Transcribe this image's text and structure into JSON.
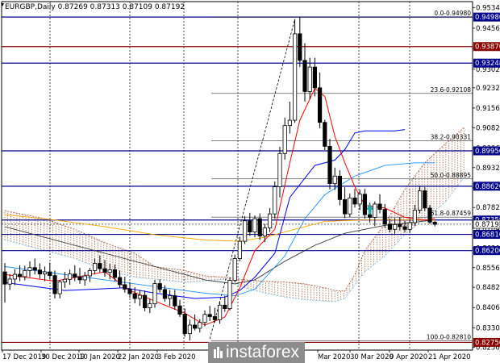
{
  "chart_data": {
    "type": "candlestick",
    "title": "EURGBP,Daily  0.87269 0.87313 0.87109 0.87192",
    "symbol": "EURGBP",
    "timeframe": "Daily",
    "ohlc_header": [
      "0.87269",
      "0.87313",
      "0.87109",
      "0.87192"
    ],
    "y_ticks": [
      "0.95340",
      "0.94560",
      "0.93800",
      "0.93020",
      "0.92320",
      "0.91560",
      "0.90820",
      "0.90060",
      "0.89320",
      "0.88560",
      "0.87820",
      "0.87040",
      "0.86300",
      "0.85560",
      "0.84820",
      "0.84060",
      "0.83300",
      "0.82560"
    ],
    "x_ticks": [
      "17 Dec 2019",
      "30 Dec 2019",
      "10 Jan 2020",
      "22 Jan 2020",
      "3 Feb 2020",
      "Mar 2020",
      "30 Mar 2020",
      "9 Apr 2020",
      "21 Apr 2020"
    ],
    "ylim": [
      0.8246,
      0.9556
    ],
    "horizontal_levels": [
      {
        "price": 0.9498,
        "label": "0.94980",
        "color": "#00008b"
      },
      {
        "price": 0.9387,
        "label": "0.93870",
        "color": "#8b0000"
      },
      {
        "price": 0.93248,
        "label": "0.93248",
        "color": "#00008b"
      },
      {
        "price": 0.8995,
        "label": "0.89950",
        "color": "#00008b"
      },
      {
        "price": 0.8862,
        "label": "0.88620",
        "color": "#00008b"
      },
      {
        "price": 0.8735,
        "label": "0.87350",
        "color": "#00008b"
      },
      {
        "price": 0.8681,
        "label": "0.86810",
        "color": "#00008b"
      },
      {
        "price": 0.862,
        "label": "0.86200",
        "color": "#00008b"
      },
      {
        "price": 0.8275,
        "label": "0.82750",
        "color": "#8b0000"
      }
    ],
    "current_price": {
      "price": 0.87192,
      "label": "0.87192"
    },
    "fibonacci": [
      {
        "price": 0.9498,
        "label": "0.0-0.94980"
      },
      {
        "price": 0.92108,
        "label": "23.6-0.92108"
      },
      {
        "price": 0.90331,
        "label": "38.2-0.90331"
      },
      {
        "price": 0.88895,
        "label": "50.0-0.88895"
      },
      {
        "price": 0.87459,
        "label": "61.8-0.87459"
      },
      {
        "price": 0.8281,
        "label": "100.0-0.82810"
      }
    ],
    "watermark": "instaforex",
    "colors": {
      "bull": "#ffffff",
      "bear": "#000000",
      "level_blue": "#00008b",
      "level_red": "#8b0000",
      "red_line": "#ff0000",
      "blue_line": "#0000ff",
      "light_blue": "#1e90ff",
      "orange": "#ffa500",
      "ma_black": "#333333",
      "kumo_blue": "#87cefa",
      "kumo_brown": "#a0522d"
    },
    "candles": [
      {
        "o": 0.854,
        "h": 0.8573,
        "l": 0.8425,
        "c": 0.8494
      },
      {
        "o": 0.8494,
        "h": 0.8532,
        "l": 0.8472,
        "c": 0.8513
      },
      {
        "o": 0.8513,
        "h": 0.855,
        "l": 0.849,
        "c": 0.8531
      },
      {
        "o": 0.8531,
        "h": 0.8565,
        "l": 0.8505,
        "c": 0.8522
      },
      {
        "o": 0.8522,
        "h": 0.8563,
        "l": 0.8508,
        "c": 0.8545
      },
      {
        "o": 0.8545,
        "h": 0.858,
        "l": 0.852,
        "c": 0.8556
      },
      {
        "o": 0.8556,
        "h": 0.859,
        "l": 0.853,
        "c": 0.8547
      },
      {
        "o": 0.8547,
        "h": 0.8572,
        "l": 0.8515,
        "c": 0.8532
      },
      {
        "o": 0.8532,
        "h": 0.856,
        "l": 0.8505,
        "c": 0.854
      },
      {
        "o": 0.854,
        "h": 0.8575,
        "l": 0.8512,
        "c": 0.8526
      },
      {
        "o": 0.8526,
        "h": 0.8545,
        "l": 0.844,
        "c": 0.8458
      },
      {
        "o": 0.8458,
        "h": 0.851,
        "l": 0.844,
        "c": 0.8502
      },
      {
        "o": 0.8502,
        "h": 0.854,
        "l": 0.848,
        "c": 0.8512
      },
      {
        "o": 0.8512,
        "h": 0.8548,
        "l": 0.8492,
        "c": 0.8532
      },
      {
        "o": 0.8532,
        "h": 0.8565,
        "l": 0.8505,
        "c": 0.852
      },
      {
        "o": 0.852,
        "h": 0.8555,
        "l": 0.8495,
        "c": 0.851
      },
      {
        "o": 0.851,
        "h": 0.854,
        "l": 0.8488,
        "c": 0.8525
      },
      {
        "o": 0.8525,
        "h": 0.8555,
        "l": 0.8502,
        "c": 0.8545
      },
      {
        "o": 0.8545,
        "h": 0.859,
        "l": 0.853,
        "c": 0.8572
      },
      {
        "o": 0.8572,
        "h": 0.8602,
        "l": 0.8538,
        "c": 0.8552
      },
      {
        "o": 0.8552,
        "h": 0.8585,
        "l": 0.8522,
        "c": 0.8538
      },
      {
        "o": 0.8538,
        "h": 0.857,
        "l": 0.8512,
        "c": 0.8548
      },
      {
        "o": 0.8548,
        "h": 0.8568,
        "l": 0.8505,
        "c": 0.8519
      },
      {
        "o": 0.8519,
        "h": 0.8545,
        "l": 0.848,
        "c": 0.8492
      },
      {
        "o": 0.8492,
        "h": 0.8522,
        "l": 0.8462,
        "c": 0.8475
      },
      {
        "o": 0.8475,
        "h": 0.8502,
        "l": 0.8442,
        "c": 0.8458
      },
      {
        "o": 0.8458,
        "h": 0.8482,
        "l": 0.8422,
        "c": 0.844
      },
      {
        "o": 0.844,
        "h": 0.8472,
        "l": 0.8412,
        "c": 0.8452
      },
      {
        "o": 0.8452,
        "h": 0.847,
        "l": 0.8392,
        "c": 0.8405
      },
      {
        "o": 0.8405,
        "h": 0.8438,
        "l": 0.8385,
        "c": 0.842
      },
      {
        "o": 0.842,
        "h": 0.851,
        "l": 0.8405,
        "c": 0.8496
      },
      {
        "o": 0.8496,
        "h": 0.8512,
        "l": 0.8462,
        "c": 0.8474
      },
      {
        "o": 0.8474,
        "h": 0.849,
        "l": 0.8428,
        "c": 0.844
      },
      {
        "o": 0.844,
        "h": 0.8472,
        "l": 0.8412,
        "c": 0.845
      },
      {
        "o": 0.845,
        "h": 0.8472,
        "l": 0.8398,
        "c": 0.8412
      },
      {
        "o": 0.8412,
        "h": 0.8435,
        "l": 0.837,
        "c": 0.8381
      },
      {
        "o": 0.8381,
        "h": 0.8402,
        "l": 0.8296,
        "c": 0.8308
      },
      {
        "o": 0.8308,
        "h": 0.836,
        "l": 0.8282,
        "c": 0.834
      },
      {
        "o": 0.834,
        "h": 0.838,
        "l": 0.832,
        "c": 0.8328
      },
      {
        "o": 0.8328,
        "h": 0.8362,
        "l": 0.8312,
        "c": 0.835
      },
      {
        "o": 0.835,
        "h": 0.8395,
        "l": 0.8335,
        "c": 0.838
      },
      {
        "o": 0.838,
        "h": 0.8412,
        "l": 0.8355,
        "c": 0.8372
      },
      {
        "o": 0.8372,
        "h": 0.8405,
        "l": 0.835,
        "c": 0.836
      },
      {
        "o": 0.836,
        "h": 0.843,
        "l": 0.8345,
        "c": 0.8415
      },
      {
        "o": 0.8415,
        "h": 0.845,
        "l": 0.839,
        "c": 0.8402
      },
      {
        "o": 0.8402,
        "h": 0.852,
        "l": 0.8395,
        "c": 0.8508
      },
      {
        "o": 0.8508,
        "h": 0.8605,
        "l": 0.85,
        "c": 0.859
      },
      {
        "o": 0.859,
        "h": 0.8672,
        "l": 0.858,
        "c": 0.8655
      },
      {
        "o": 0.8655,
        "h": 0.875,
        "l": 0.8645,
        "c": 0.8732
      },
      {
        "o": 0.8732,
        "h": 0.8762,
        "l": 0.8675,
        "c": 0.869
      },
      {
        "o": 0.869,
        "h": 0.8752,
        "l": 0.867,
        "c": 0.874
      },
      {
        "o": 0.874,
        "h": 0.876,
        "l": 0.866,
        "c": 0.8675
      },
      {
        "o": 0.8675,
        "h": 0.872,
        "l": 0.8652,
        "c": 0.8705
      },
      {
        "o": 0.8705,
        "h": 0.878,
        "l": 0.869,
        "c": 0.8758
      },
      {
        "o": 0.8758,
        "h": 0.888,
        "l": 0.874,
        "c": 0.886
      },
      {
        "o": 0.886,
        "h": 0.901,
        "l": 0.882,
        "c": 0.8985
      },
      {
        "o": 0.8985,
        "h": 0.912,
        "l": 0.8962,
        "c": 0.909
      },
      {
        "o": 0.909,
        "h": 0.918,
        "l": 0.906,
        "c": 0.911
      },
      {
        "o": 0.911,
        "h": 0.949,
        "l": 0.91,
        "c": 0.9435
      },
      {
        "o": 0.9435,
        "h": 0.9498,
        "l": 0.931,
        "c": 0.9335
      },
      {
        "o": 0.9335,
        "h": 0.94,
        "l": 0.918,
        "c": 0.9218
      },
      {
        "o": 0.9218,
        "h": 0.9345,
        "l": 0.919,
        "c": 0.931
      },
      {
        "o": 0.931,
        "h": 0.9345,
        "l": 0.92,
        "c": 0.9232
      },
      {
        "o": 0.9232,
        "h": 0.929,
        "l": 0.908,
        "c": 0.9102
      },
      {
        "o": 0.9102,
        "h": 0.9112,
        "l": 0.8998,
        "c": 0.9012
      },
      {
        "o": 0.9012,
        "h": 0.904,
        "l": 0.885,
        "c": 0.8872
      },
      {
        "o": 0.8872,
        "h": 0.8932,
        "l": 0.8848,
        "c": 0.89
      },
      {
        "o": 0.89,
        "h": 0.8922,
        "l": 0.879,
        "c": 0.8812
      },
      {
        "o": 0.8812,
        "h": 0.8858,
        "l": 0.8742,
        "c": 0.8758
      },
      {
        "o": 0.8758,
        "h": 0.8835,
        "l": 0.8745,
        "c": 0.8818
      },
      {
        "o": 0.8818,
        "h": 0.8852,
        "l": 0.8782,
        "c": 0.8795
      },
      {
        "o": 0.8795,
        "h": 0.8848,
        "l": 0.8772,
        "c": 0.8832
      },
      {
        "o": 0.8832,
        "h": 0.8852,
        "l": 0.874,
        "c": 0.8755
      },
      {
        "o": 0.8755,
        "h": 0.88,
        "l": 0.8725,
        "c": 0.8745
      },
      {
        "o": 0.8745,
        "h": 0.8805,
        "l": 0.8712,
        "c": 0.8795
      },
      {
        "o": 0.8795,
        "h": 0.8832,
        "l": 0.876,
        "c": 0.8775
      },
      {
        "o": 0.8775,
        "h": 0.8795,
        "l": 0.8705,
        "c": 0.872
      },
      {
        "o": 0.872,
        "h": 0.874,
        "l": 0.8688,
        "c": 0.87
      },
      {
        "o": 0.87,
        "h": 0.8742,
        "l": 0.868,
        "c": 0.8718
      },
      {
        "o": 0.8718,
        "h": 0.8745,
        "l": 0.8695,
        "c": 0.871
      },
      {
        "o": 0.871,
        "h": 0.8732,
        "l": 0.8688,
        "c": 0.87
      },
      {
        "o": 0.87,
        "h": 0.8738,
        "l": 0.8685,
        "c": 0.8725
      },
      {
        "o": 0.8725,
        "h": 0.8792,
        "l": 0.8712,
        "c": 0.8772
      },
      {
        "o": 0.8772,
        "h": 0.886,
        "l": 0.876,
        "c": 0.8845
      },
      {
        "o": 0.8845,
        "h": 0.8858,
        "l": 0.8768,
        "c": 0.878
      },
      {
        "o": 0.878,
        "h": 0.8792,
        "l": 0.872,
        "c": 0.8727
      },
      {
        "o": 0.8727,
        "h": 0.8731,
        "l": 0.8711,
        "c": 0.8719
      }
    ],
    "red_line": [
      [
        0,
        0.853
      ],
      [
        10,
        0.8505
      ],
      [
        20,
        0.854
      ],
      [
        25,
        0.847
      ],
      [
        30,
        0.843
      ],
      [
        36,
        0.8385
      ],
      [
        40,
        0.834
      ],
      [
        44,
        0.837
      ],
      [
        47,
        0.848
      ],
      [
        50,
        0.862
      ],
      [
        54,
        0.87
      ],
      [
        57,
        0.895
      ],
      [
        59,
        0.911
      ],
      [
        62,
        0.923
      ],
      [
        64,
        0.92
      ],
      [
        66,
        0.905
      ],
      [
        68,
        0.895
      ],
      [
        70,
        0.886
      ],
      [
        72,
        0.879
      ],
      [
        76,
        0.878
      ],
      [
        80,
        0.8745
      ],
      [
        84,
        0.8735
      ],
      [
        86,
        0.874
      ]
    ],
    "blue_line": [
      [
        0,
        0.85
      ],
      [
        12,
        0.847
      ],
      [
        24,
        0.848
      ],
      [
        30,
        0.846
      ],
      [
        38,
        0.844
      ],
      [
        44,
        0.8445
      ],
      [
        47,
        0.847
      ],
      [
        50,
        0.852
      ],
      [
        54,
        0.861
      ],
      [
        57,
        0.882
      ],
      [
        62,
        0.894
      ],
      [
        66,
        0.896
      ],
      [
        68,
        0.9
      ],
      [
        70,
        0.9062
      ],
      [
        72,
        0.907
      ],
      [
        78,
        0.907
      ],
      [
        80,
        0.9075
      ]
    ],
    "light_blue_line": [
      [
        0,
        0.856
      ],
      [
        20,
        0.851
      ],
      [
        40,
        0.846
      ],
      [
        46,
        0.845
      ],
      [
        50,
        0.8475
      ],
      [
        56,
        0.86
      ],
      [
        60,
        0.874
      ],
      [
        64,
        0.883
      ],
      [
        70,
        0.89
      ],
      [
        76,
        0.894
      ],
      [
        82,
        0.895
      ],
      [
        86,
        0.895
      ]
    ],
    "orange_ma": [
      [
        0,
        0.8755
      ],
      [
        10,
        0.8735
      ],
      [
        20,
        0.871
      ],
      [
        30,
        0.868
      ],
      [
        40,
        0.866
      ],
      [
        47,
        0.8655
      ],
      [
        52,
        0.867
      ],
      [
        58,
        0.87
      ],
      [
        64,
        0.873
      ],
      [
        72,
        0.8735
      ],
      [
        80,
        0.8735
      ],
      [
        86,
        0.8735
      ]
    ],
    "black_ma": [
      [
        0,
        0.871
      ],
      [
        10,
        0.866
      ],
      [
        20,
        0.861
      ],
      [
        30,
        0.856
      ],
      [
        40,
        0.851
      ],
      [
        46,
        0.8495
      ],
      [
        50,
        0.851
      ],
      [
        56,
        0.858
      ],
      [
        62,
        0.864
      ],
      [
        68,
        0.8685
      ],
      [
        76,
        0.8715
      ],
      [
        86,
        0.8735
      ]
    ],
    "kumo_span_a": [
      [
        0,
        0.866
      ],
      [
        8,
        0.862
      ],
      [
        14,
        0.859
      ],
      [
        20,
        0.8545
      ],
      [
        26,
        0.852
      ],
      [
        30,
        0.8512
      ],
      [
        36,
        0.85
      ],
      [
        40,
        0.8505
      ],
      [
        44,
        0.8512
      ],
      [
        48,
        0.848
      ],
      [
        52,
        0.846
      ],
      [
        56,
        0.8445
      ],
      [
        60,
        0.8435
      ],
      [
        64,
        0.843
      ],
      [
        66,
        0.8428
      ],
      [
        68,
        0.844
      ],
      [
        70,
        0.849
      ],
      [
        72,
        0.854
      ],
      [
        76,
        0.86
      ],
      [
        80,
        0.868
      ],
      [
        84,
        0.874
      ],
      [
        88,
        0.88
      ],
      [
        92,
        0.89
      ]
    ],
    "kumo_span_b": [
      [
        0,
        0.877
      ],
      [
        8,
        0.874
      ],
      [
        14,
        0.87
      ],
      [
        20,
        0.865
      ],
      [
        26,
        0.861
      ],
      [
        30,
        0.856
      ],
      [
        36,
        0.8545
      ],
      [
        40,
        0.8525
      ],
      [
        44,
        0.852
      ],
      [
        48,
        0.851
      ],
      [
        52,
        0.8505
      ],
      [
        56,
        0.8502
      ],
      [
        60,
        0.8495
      ],
      [
        64,
        0.848
      ],
      [
        66,
        0.847
      ],
      [
        68,
        0.8468
      ],
      [
        70,
        0.853
      ],
      [
        72,
        0.862
      ],
      [
        76,
        0.872
      ],
      [
        80,
        0.885
      ],
      [
        84,
        0.895
      ],
      [
        88,
        0.902
      ],
      [
        92,
        0.9085
      ]
    ],
    "dashed_black_line": [
      [
        41,
        0.8288
      ],
      [
        58,
        0.949
      ]
    ],
    "teal_arrow": {
      "i": 73,
      "price": 0.8778
    }
  }
}
